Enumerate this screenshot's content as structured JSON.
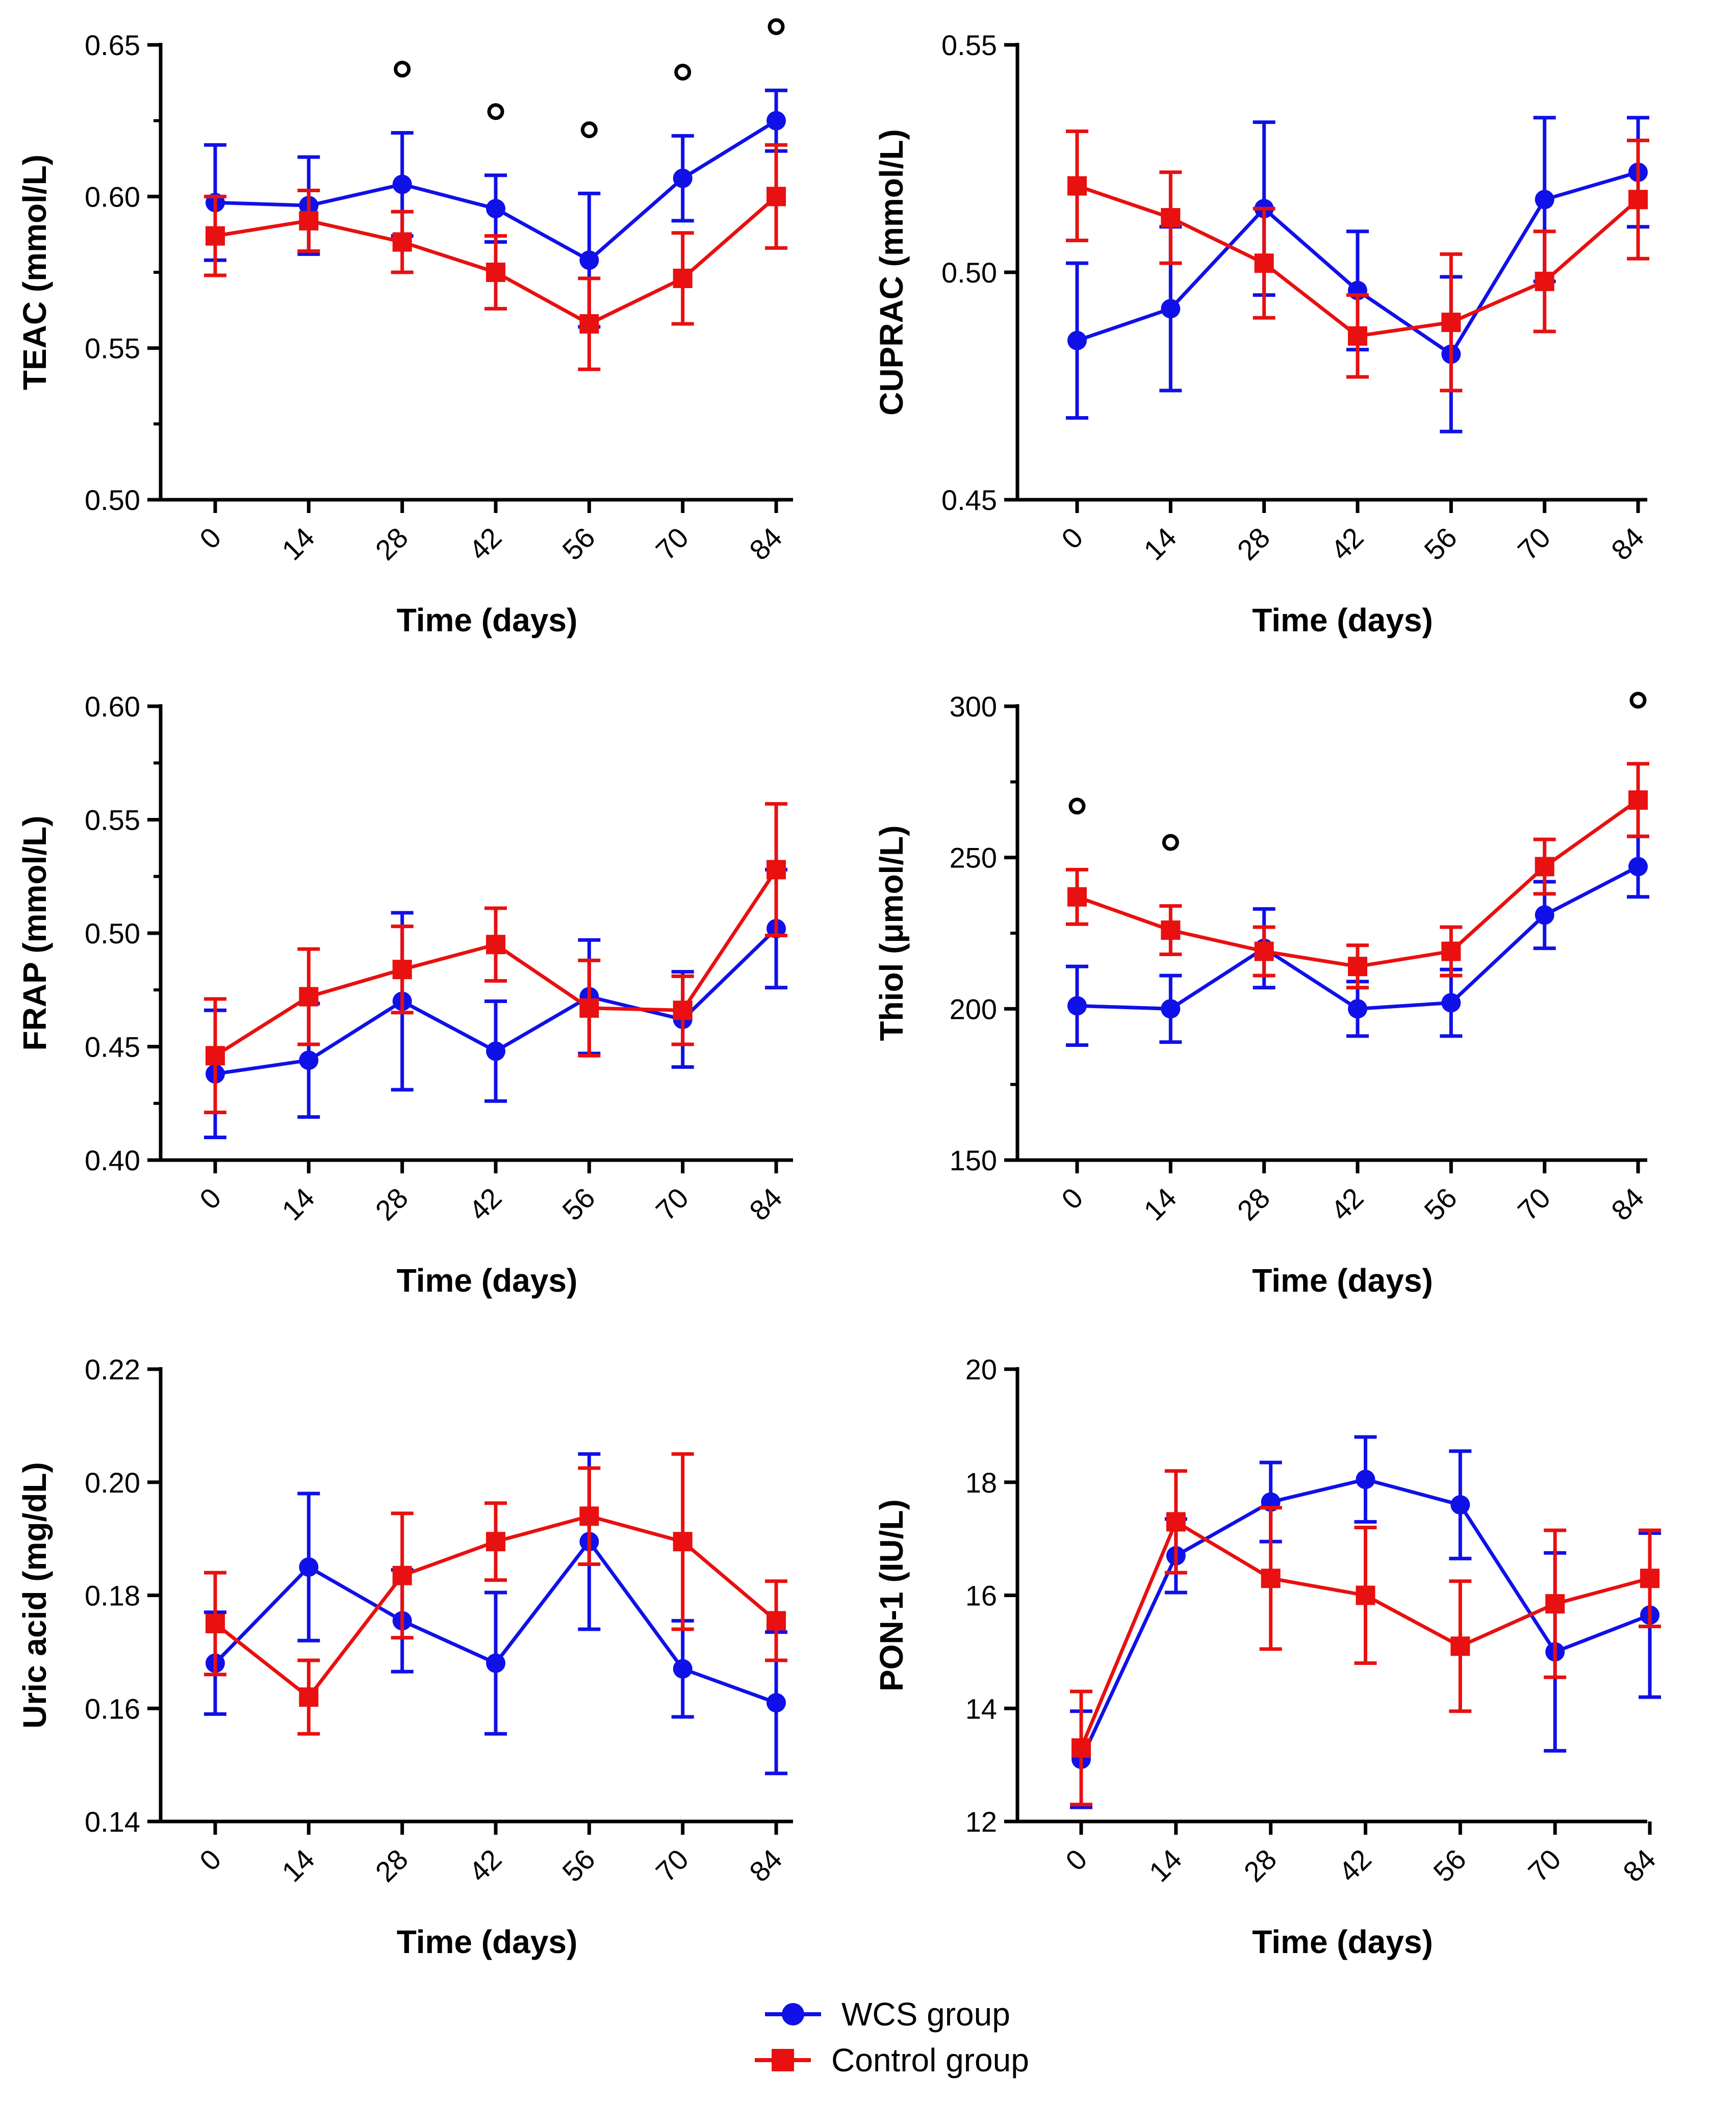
{
  "figure": {
    "legend_position": "bottom-center"
  },
  "legend": [
    {
      "label": "WCS group",
      "color": "#1010e8",
      "marker": "circle"
    },
    {
      "label": "Control group",
      "color": "#e81010",
      "marker": "square"
    }
  ],
  "chart_data": [
    {
      "type": "line",
      "id": "teac",
      "title": "",
      "xlabel": "Time (days)",
      "ylabel": "TEAC (mmol/L)",
      "categories": [
        "0",
        "14",
        "28",
        "42",
        "56",
        "70",
        "84"
      ],
      "ylim": [
        0.5,
        0.65
      ],
      "yticks": [
        "0.50",
        "0.55",
        "0.60",
        "0.65"
      ],
      "minor_ticks": true,
      "series": [
        {
          "name": "WCS group",
          "values": [
            0.598,
            0.597,
            0.604,
            0.596,
            0.579,
            0.606,
            0.625
          ],
          "err": [
            0.019,
            0.016,
            0.017,
            0.011,
            0.022,
            0.014,
            0.01
          ]
        },
        {
          "name": "Control group",
          "values": [
            0.587,
            0.592,
            0.585,
            0.575,
            0.558,
            0.573,
            0.6
          ],
          "err": [
            0.013,
            0.01,
            0.01,
            0.012,
            0.015,
            0.015,
            0.017
          ]
        }
      ],
      "annotations": [
        {
          "symbol": "o",
          "category": "28",
          "y": 0.642
        },
        {
          "symbol": "o",
          "category": "42",
          "y": 0.628
        },
        {
          "symbol": "o",
          "category": "56",
          "y": 0.622
        },
        {
          "symbol": "o",
          "category": "70",
          "y": 0.641
        },
        {
          "symbol": "o",
          "category": "84",
          "y": 0.656
        }
      ]
    },
    {
      "type": "line",
      "id": "cuprac",
      "title": "",
      "xlabel": "Time (days)",
      "ylabel": "CUPRAC (mmol/L)",
      "categories": [
        "0",
        "14",
        "28",
        "42",
        "56",
        "70",
        "84"
      ],
      "ylim": [
        0.45,
        0.55
      ],
      "yticks": [
        "0.45",
        "0.50",
        "0.55"
      ],
      "minor_ticks": false,
      "series": [
        {
          "name": "WCS group",
          "values": [
            0.485,
            0.492,
            0.514,
            0.496,
            0.482,
            0.516,
            0.522
          ],
          "err": [
            0.017,
            0.018,
            0.019,
            0.013,
            0.017,
            0.018,
            0.012
          ]
        },
        {
          "name": "Control group",
          "values": [
            0.519,
            0.512,
            0.502,
            0.486,
            0.489,
            0.498,
            0.516
          ],
          "err": [
            0.012,
            0.01,
            0.012,
            0.009,
            0.015,
            0.011,
            0.013
          ]
        }
      ],
      "annotations": []
    },
    {
      "type": "line",
      "id": "frap",
      "title": "",
      "xlabel": "Time (days)",
      "ylabel": "FRAP (mmol/L)",
      "categories": [
        "0",
        "14",
        "28",
        "42",
        "56",
        "70",
        "84"
      ],
      "ylim": [
        0.4,
        0.6
      ],
      "yticks": [
        "0.40",
        "0.45",
        "0.50",
        "0.55",
        "0.60"
      ],
      "minor_ticks": true,
      "series": [
        {
          "name": "WCS group",
          "values": [
            0.438,
            0.444,
            0.47,
            0.448,
            0.472,
            0.462,
            0.502
          ],
          "err": [
            0.028,
            0.025,
            0.039,
            0.022,
            0.025,
            0.021,
            0.026
          ]
        },
        {
          "name": "Control group",
          "values": [
            0.446,
            0.472,
            0.484,
            0.495,
            0.467,
            0.466,
            0.528
          ],
          "err": [
            0.025,
            0.021,
            0.019,
            0.016,
            0.021,
            0.015,
            0.029
          ]
        }
      ],
      "annotations": []
    },
    {
      "type": "line",
      "id": "thiol",
      "title": "",
      "xlabel": "Time (days)",
      "ylabel": "Thiol (μmol/L)",
      "categories": [
        "0",
        "14",
        "28",
        "42",
        "56",
        "70",
        "84"
      ],
      "ylim": [
        150,
        300
      ],
      "yticks": [
        "150",
        "200",
        "250",
        "300"
      ],
      "minor_ticks": true,
      "series": [
        {
          "name": "WCS group",
          "values": [
            201,
            200,
            220,
            200,
            202,
            231,
            247
          ],
          "err": [
            13,
            11,
            13,
            9,
            11,
            11,
            10
          ]
        },
        {
          "name": "Control group",
          "values": [
            237,
            226,
            219,
            214,
            219,
            247,
            269
          ],
          "err": [
            9,
            8,
            8,
            7,
            8,
            9,
            12
          ]
        }
      ],
      "annotations": [
        {
          "symbol": "o",
          "category": "0",
          "y": 267
        },
        {
          "symbol": "o",
          "category": "14",
          "y": 255
        },
        {
          "symbol": "o",
          "category": "84",
          "y": 302
        }
      ]
    },
    {
      "type": "line",
      "id": "uric-acid",
      "title": "",
      "xlabel": "Time (days)",
      "ylabel": "Uric acid (mg/dL)",
      "categories": [
        "0",
        "14",
        "28",
        "42",
        "56",
        "70",
        "84"
      ],
      "ylim": [
        0.14,
        0.22
      ],
      "yticks": [
        "0.14",
        "0.16",
        "0.18",
        "0.20",
        "0.22"
      ],
      "minor_ticks": false,
      "series": [
        {
          "name": "WCS group",
          "values": [
            0.168,
            0.185,
            0.1755,
            0.168,
            0.1895,
            0.167,
            0.161
          ],
          "err": [
            0.009,
            0.013,
            0.009,
            0.0125,
            0.0155,
            0.0085,
            0.0125
          ]
        },
        {
          "name": "Control group",
          "values": [
            0.175,
            0.162,
            0.1835,
            0.1895,
            0.194,
            0.1895,
            0.1755
          ],
          "err": [
            0.009,
            0.0065,
            0.011,
            0.0068,
            0.0085,
            0.0155,
            0.007
          ]
        }
      ],
      "annotations": []
    },
    {
      "type": "line",
      "id": "pon-1",
      "title": "",
      "xlabel": "Time (days)",
      "ylabel": "PON-1 (IU/L)",
      "categories": [
        "0",
        "14",
        "28",
        "42",
        "56",
        "70",
        "84"
      ],
      "ylim": [
        12,
        20
      ],
      "yticks": [
        "12",
        "14",
        "16",
        "18",
        "20"
      ],
      "minor_ticks": false,
      "series": [
        {
          "name": "WCS group",
          "values": [
            13.1,
            16.7,
            17.65,
            18.05,
            17.6,
            15.0,
            15.65
          ],
          "err": [
            0.85,
            0.65,
            0.7,
            0.75,
            0.95,
            1.75,
            1.45
          ]
        },
        {
          "name": "Control group",
          "values": [
            13.3,
            17.3,
            16.3,
            16.0,
            15.1,
            15.85,
            16.3
          ],
          "err": [
            1.0,
            0.9,
            1.25,
            1.2,
            1.15,
            1.3,
            0.85
          ]
        }
      ],
      "annotations": []
    }
  ]
}
